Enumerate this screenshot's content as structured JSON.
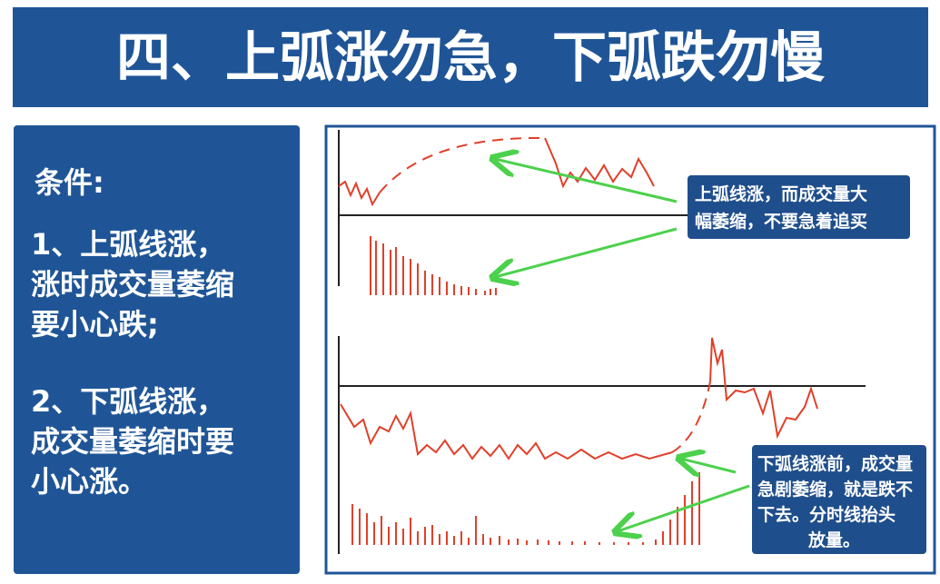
{
  "header": {
    "title": "四、上弧涨勿急，下弧跌勿慢"
  },
  "conditions": {
    "heading": "条件:",
    "items": [
      {
        "lines": [
          "1、上弧线涨，",
          "涨时成交量萎缩",
          "要小心跌;"
        ]
      },
      {
        "lines": [
          "2、下弧线涨，",
          "成交量萎缩时要",
          "小心涨。"
        ]
      }
    ]
  },
  "callouts": [
    {
      "lines": [
        "上弧线涨，而成交量大",
        "幅萎缩，不要急着追买"
      ]
    },
    {
      "lines": [
        "下弧线涨前，成交量",
        "急剧萎缩，就是跌不",
        "下去。分时线抬头",
        "放量。"
      ]
    }
  ]
}
